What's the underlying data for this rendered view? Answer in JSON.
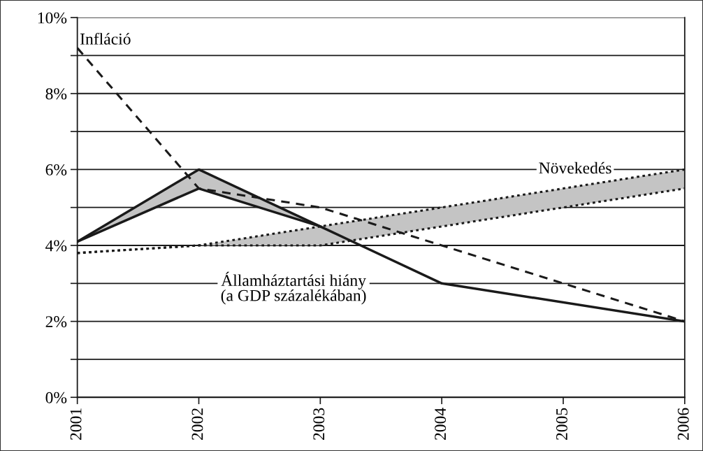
{
  "chart_data": {
    "type": "line",
    "x": [
      2001,
      2002,
      2003,
      2004,
      2005,
      2006
    ],
    "series": [
      {
        "name": "Infláció",
        "color": "#1a1a1a",
        "line_style": "dashed",
        "values": [
          9.2,
          5.5,
          5.0,
          4.0,
          3.0,
          2.0
        ]
      },
      {
        "name": "Növekedés",
        "color": "#1a1a1a",
        "line_style": "dotted",
        "values": [
          3.8,
          4.0,
          4.5,
          5.0,
          5.5,
          6.0
        ],
        "lower": [
          3.8,
          4.0,
          4.0,
          4.5,
          5.0,
          5.5
        ],
        "upper": [
          3.8,
          4.0,
          4.5,
          5.0,
          5.5,
          6.0
        ]
      },
      {
        "name": "Államháztartási hiány\n(a GDP százalékában)",
        "color": "#1a1a1a",
        "line_style": "solid",
        "x": [
          2001,
          2002,
          2003,
          2004,
          2006
        ],
        "values": [
          4.1,
          6.0,
          4.5,
          3.0,
          2.0
        ],
        "lower": [
          4.1,
          5.5,
          4.5,
          3.0,
          2.0
        ],
        "upper": [
          4.1,
          6.0,
          4.5,
          3.0,
          2.0
        ]
      },
      {
        "color": "#1a1a1a",
        "line_style": "dotted",
        "values": [
          3.8,
          4.0,
          4.0,
          4.5,
          5.0,
          5.5
        ]
      },
      {
        "color": "#1a1a1a",
        "line_style": "solid",
        "x": [
          2001,
          2002,
          2003
        ],
        "values": [
          4.1,
          5.5,
          4.5
        ]
      }
    ],
    "xlim": [
      2001,
      2006
    ],
    "xticks": [
      2001,
      2002,
      2003,
      2004,
      2005,
      2006
    ],
    "ylim": [
      0,
      10
    ],
    "yticks": [
      {
        "value": 0,
        "label": "0%"
      },
      {
        "value": 1,
        "label": null
      },
      {
        "value": 2,
        "label": "2%"
      },
      {
        "value": 3,
        "label": null
      },
      {
        "value": 4,
        "label": "4%"
      },
      {
        "value": 5,
        "label": null
      },
      {
        "value": 6,
        "label": "6%"
      },
      {
        "value": 7,
        "label": null
      },
      {
        "value": 8,
        "label": "8%"
      },
      {
        "value": 9,
        "label": null
      },
      {
        "value": 10,
        "label": "10%"
      }
    ],
    "grid": "y",
    "legend": false,
    "marker": "none"
  }
}
